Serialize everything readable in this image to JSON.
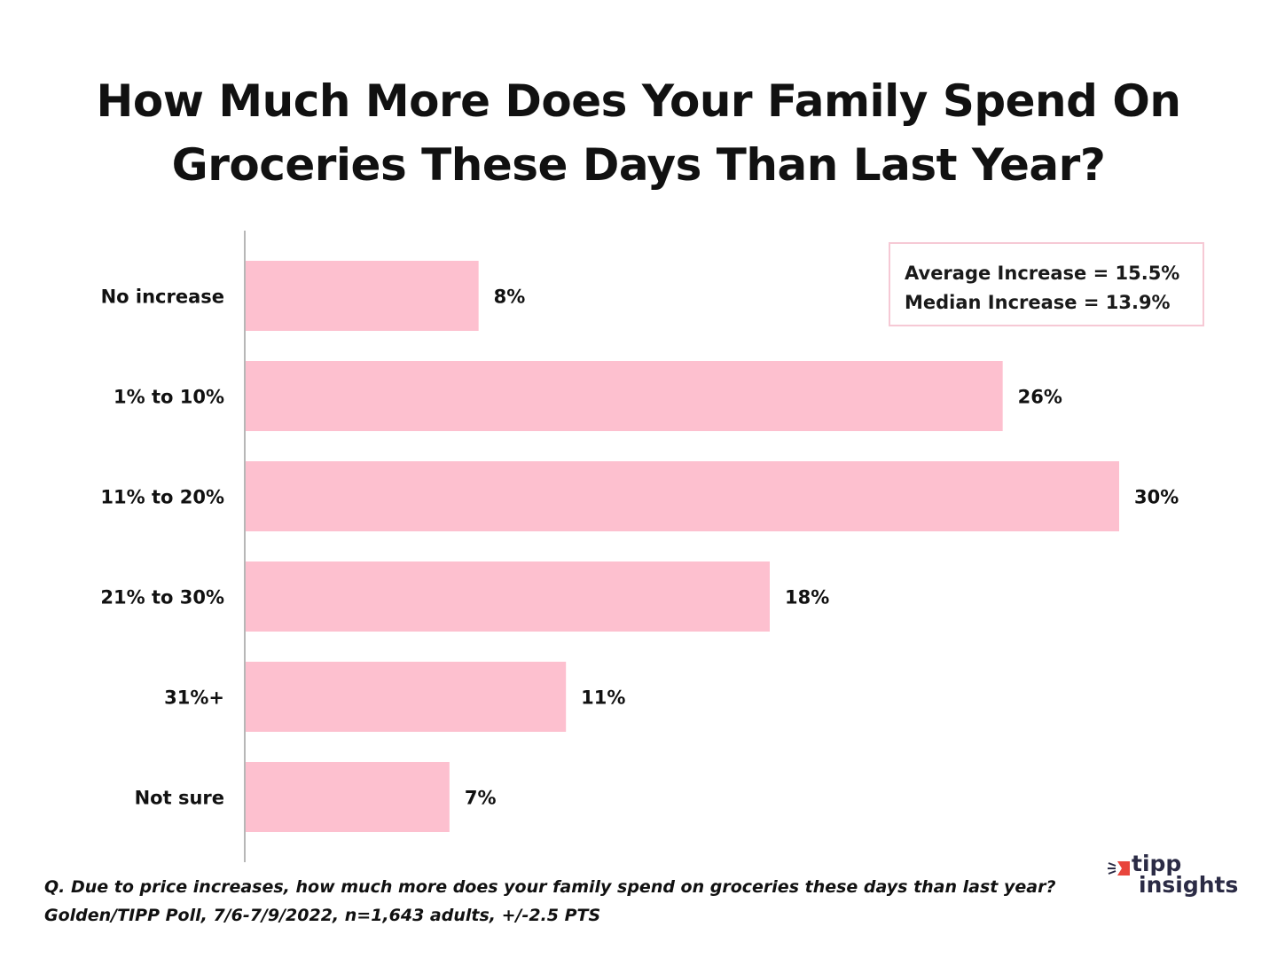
{
  "chart_data": {
    "type": "bar",
    "orientation": "horizontal",
    "title": "How Much More Does Your Family Spend On Groceries These Days Than Last Year?",
    "title_lines": [
      "How Much More Does Your Family Spend On",
      "Groceries These Days Than Last Year?"
    ],
    "categories": [
      "No increase",
      "1% to 10%",
      "11% to 20%",
      "21% to 30%",
      "31%+",
      "Not sure"
    ],
    "values": [
      8,
      26,
      30,
      18,
      11,
      7
    ],
    "value_labels": [
      "8%",
      "26%",
      "30%",
      "18%",
      "11%",
      "7%"
    ],
    "unit": "%",
    "xlim": [
      0,
      30
    ],
    "bar_color": "#fdc0cf",
    "axis_color": "#b7b7b7",
    "grid": false,
    "legend": null,
    "annotation": {
      "lines": [
        "Average Increase = 15.5%",
        "Median Increase = 13.9%"
      ],
      "border_color": "#f6c9d5",
      "placement": "top-right"
    }
  },
  "footnote": {
    "question": "Q. Due to price increases, how much more does your family spend on groceries these days than last year?",
    "source": "Golden/TIPP Poll, 7/6-7/9/2022, n=1,643 adults, +/-2.5 PTS"
  },
  "logo": {
    "line1": "tipp",
    "line2": "insights",
    "accent_color": "#e8453c",
    "text_color": "#2b2b45",
    "icon": "tipp-insights-logo-icon"
  }
}
